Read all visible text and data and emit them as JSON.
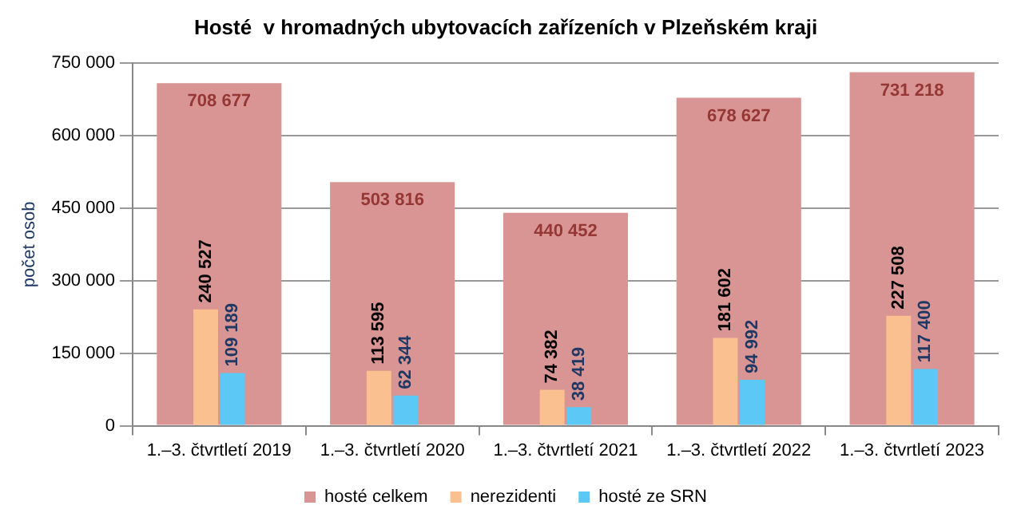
{
  "chart_data": {
    "type": "bar",
    "title": "Hosté  v hromadných ubytovacích zařízeních v Plzeňském kraji",
    "ylabel": "počet osob",
    "categories": [
      "1.–3. čtvrtletí 2019",
      "1.–3. čtvrtletí 2020",
      "1.–3. čtvrtletí 2021",
      "1.–3. čtvrtletí 2022",
      "1.–3. čtvrtletí 2023"
    ],
    "series": [
      {
        "name": "hosté celkem",
        "color": "#d99594",
        "values": [
          708677,
          503816,
          440452,
          678627,
          731218
        ]
      },
      {
        "name": "nerezidenti",
        "color": "#fac090",
        "values": [
          240527,
          113595,
          74382,
          181602,
          227508
        ]
      },
      {
        "name": "hosté ze SRN",
        "color": "#5bc8f5",
        "values": [
          109189,
          62344,
          38419,
          94992,
          117400
        ]
      }
    ],
    "ylim": [
      0,
      750000
    ],
    "yticks": [
      {
        "value": 0,
        "label": "0"
      },
      {
        "value": 150000,
        "label": "150 000"
      },
      {
        "value": 300000,
        "label": "300 000"
      },
      {
        "value": 450000,
        "label": "450 000"
      },
      {
        "value": 600000,
        "label": "600 000"
      },
      {
        "value": 750000,
        "label": "750 000"
      }
    ],
    "data_labels": true,
    "grid": "y",
    "legend": "bottom"
  }
}
